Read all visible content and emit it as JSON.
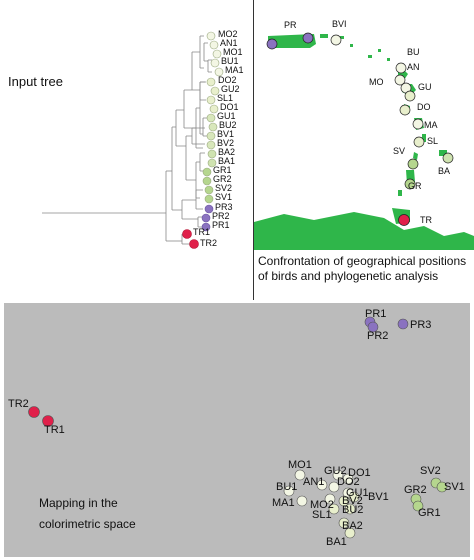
{
  "tree": {
    "title": "Input tree",
    "leaves": [
      "MO2",
      "AN1",
      "MO1",
      "BU1",
      "MA1",
      "DO2",
      "GU2",
      "SL1",
      "DO1",
      "GU1",
      "BU2",
      "BV1",
      "BV2",
      "BA2",
      "BA1",
      "GR1",
      "GR2",
      "SV2",
      "SV1",
      "PR3",
      "PR2",
      "PR1",
      "TR1",
      "TR2"
    ]
  },
  "map": {
    "caption": "Confrontation of geographical positions of birds and phylogenetic analysis",
    "islands": [
      "PR",
      "BVI",
      "BU",
      "AN",
      "MO",
      "GU",
      "DO",
      "MA",
      "SL",
      "SV",
      "BA",
      "GR",
      "TR"
    ]
  },
  "colorimetric": {
    "caption": "Mapping in the colorimetric space",
    "points": [
      "PR1",
      "PR2",
      "PR3",
      "TR2",
      "TR1",
      "MO1",
      "GU2",
      "DO1",
      "AN1",
      "DO2",
      "BU1",
      "GU1",
      "BV1",
      "MO2",
      "BV2",
      "MA1",
      "SL1",
      "BU2",
      "BA2",
      "BA1",
      "SV2",
      "SV1",
      "GR2",
      "GR1"
    ]
  },
  "colors": {
    "tr": "#e0204a",
    "pr": "#8a72c0",
    "green_light": "#cfe3b0",
    "green_mid": "#b5d68e",
    "pale": "#f3f6e4",
    "land": "#2fb64a",
    "gray_bg": "#bbbbbb"
  }
}
